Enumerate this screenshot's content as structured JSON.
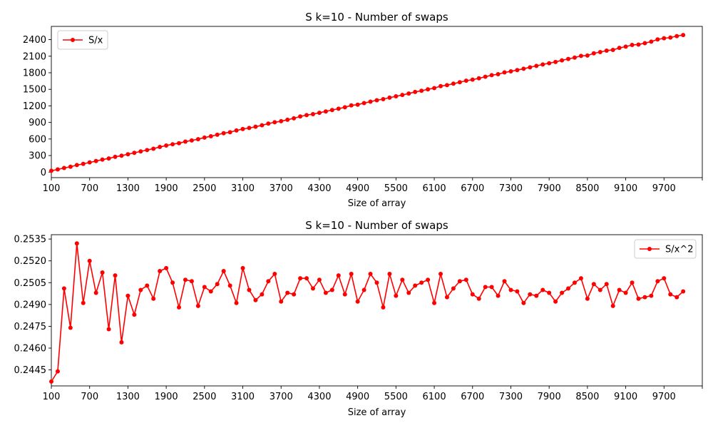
{
  "chart_data": [
    {
      "type": "line",
      "title": "S k=10 - Number of swaps",
      "xlabel": "Size of array",
      "ylabel": "",
      "xlim": [
        100,
        10300
      ],
      "ylim": [
        -100,
        2640
      ],
      "xticks": [
        100,
        700,
        1300,
        1900,
        2500,
        3100,
        3700,
        4300,
        4900,
        5500,
        6100,
        6700,
        7300,
        7900,
        8500,
        9100,
        9700,
        10300
      ],
      "xtick_labels": [
        "100",
        "700",
        "1300",
        "1900",
        "2500",
        "3100",
        "3700",
        "4300",
        "4900",
        "5500",
        "6100",
        "6700",
        "7300",
        "7900",
        "8500",
        "9100",
        "9700",
        ""
      ],
      "yticks": [
        0,
        300,
        600,
        900,
        1200,
        1500,
        1800,
        2100,
        2400
      ],
      "yticks_labels": [
        "0",
        "300",
        "600",
        "900",
        "1200",
        "1500",
        "1800",
        "2100",
        "2400"
      ],
      "legend_position": "top-left",
      "color": "#ff0000",
      "series": [
        {
          "name": "S/x",
          "x": [
            100,
            200,
            300,
            400,
            500,
            600,
            700,
            800,
            900,
            1000,
            1100,
            1200,
            1300,
            1400,
            1500,
            1600,
            1700,
            1800,
            1900,
            2000,
            2100,
            2200,
            2300,
            2400,
            2500,
            2600,
            2700,
            2800,
            2900,
            3000,
            3100,
            3200,
            3300,
            3400,
            3500,
            3600,
            3700,
            3800,
            3900,
            4000,
            4100,
            4200,
            4300,
            4400,
            4500,
            4600,
            4700,
            4800,
            4900,
            5000,
            5100,
            5200,
            5300,
            5400,
            5500,
            5600,
            5700,
            5800,
            5900,
            6000,
            6100,
            6200,
            6300,
            6400,
            6500,
            6600,
            6700,
            6800,
            6900,
            7000,
            7100,
            7200,
            7300,
            7400,
            7500,
            7600,
            7700,
            7800,
            7900,
            8000,
            8100,
            8200,
            8300,
            8400,
            8500,
            8600,
            8700,
            8800,
            8900,
            9000,
            9100,
            9200,
            9300,
            9400,
            9500,
            9600,
            9700,
            9800,
            9900,
            10000
          ],
          "values": [
            24,
            49,
            75,
            97,
            127,
            149,
            176,
            200,
            227,
            247,
            277,
            297,
            324,
            349,
            375,
            400,
            424,
            455,
            481,
            505,
            524,
            552,
            574,
            597,
            626,
            649,
            677,
            705,
            723,
            755,
            780,
            800,
            822,
            849,
            879,
            903,
            922,
            949,
            974,
            1008,
            1033,
            1050,
            1075,
            1099,
            1125,
            1149,
            1174,
            1208,
            1222,
            1250,
            1276,
            1302,
            1322,
            1349,
            1373,
            1398,
            1424,
            1452,
            1474,
            1500,
            1522,
            1558,
            1575,
            1602,
            1629,
            1656,
            1675,
            1700,
            1728,
            1756,
            1774,
            1806,
            1825,
            1849,
            1872,
            1899,
            1924,
            1950,
            1973,
            1996,
            2025,
            2050,
            2074,
            2106,
            2112,
            2152,
            2175,
            2201,
            2214,
            2250,
            2273,
            2304,
            2311,
            2337,
            2364,
            2404,
            2425,
            2438,
            2464,
            2484
          ]
        }
      ]
    },
    {
      "type": "line",
      "title": "S k=10 - Number of swaps",
      "xlabel": "Size of array",
      "ylabel": "",
      "xlim": [
        100,
        10300
      ],
      "ylim": [
        0.2434,
        0.2538
      ],
      "xticks": [
        100,
        700,
        1300,
        1900,
        2500,
        3100,
        3700,
        4300,
        4900,
        5500,
        6100,
        6700,
        7300,
        7900,
        8500,
        9100,
        9700,
        10300
      ],
      "xtick_labels": [
        "100",
        "700",
        "1300",
        "1900",
        "2500",
        "3100",
        "3700",
        "4300",
        "4900",
        "5500",
        "6100",
        "6700",
        "7300",
        "7900",
        "8500",
        "9100",
        "9700",
        ""
      ],
      "yticks": [
        0.2445,
        0.246,
        0.2475,
        0.249,
        0.2505,
        0.252,
        0.2535
      ],
      "yticks_labels": [
        "0.2445",
        "0.2460",
        "0.2475",
        "0.2490",
        "0.2505",
        "0.2520",
        "0.2535"
      ],
      "legend_position": "top-right",
      "color": "#ff0000",
      "series": [
        {
          "name": "S/x^2",
          "x": [
            100,
            200,
            300,
            400,
            500,
            600,
            700,
            800,
            900,
            1000,
            1100,
            1200,
            1300,
            1400,
            1500,
            1600,
            1700,
            1800,
            1900,
            2000,
            2100,
            2200,
            2300,
            2400,
            2500,
            2600,
            2700,
            2800,
            2900,
            3000,
            3100,
            3200,
            3300,
            3400,
            3500,
            3600,
            3700,
            3800,
            3900,
            4000,
            4100,
            4200,
            4300,
            4400,
            4500,
            4600,
            4700,
            4800,
            4900,
            5000,
            5100,
            5200,
            5300,
            5400,
            5500,
            5600,
            5700,
            5800,
            5900,
            6000,
            6100,
            6200,
            6300,
            6400,
            6500,
            6600,
            6700,
            6800,
            6900,
            7000,
            7100,
            7200,
            7300,
            7400,
            7500,
            7600,
            7700,
            7800,
            7900,
            8000,
            8100,
            8200,
            8300,
            8400,
            8500,
            8600,
            8700,
            8800,
            8900,
            9000,
            9100,
            9200,
            9300,
            9400,
            9500,
            9600,
            9700,
            9800,
            9900,
            10000
          ],
          "values": [
            0.2437,
            0.2444,
            0.2501,
            0.2474,
            0.2532,
            0.2491,
            0.252,
            0.2498,
            0.2512,
            0.2473,
            0.251,
            0.2464,
            0.2496,
            0.2483,
            0.25,
            0.2503,
            0.2494,
            0.2513,
            0.2515,
            0.2505,
            0.2488,
            0.2507,
            0.2506,
            0.2489,
            0.2502,
            0.2499,
            0.2504,
            0.2513,
            0.2503,
            0.2491,
            0.2515,
            0.25,
            0.2493,
            0.2497,
            0.2506,
            0.2511,
            0.2492,
            0.2498,
            0.2497,
            0.2508,
            0.2508,
            0.2501,
            0.2507,
            0.2498,
            0.25,
            0.251,
            0.2497,
            0.2511,
            0.2492,
            0.25,
            0.2511,
            0.2505,
            0.2488,
            0.2511,
            0.2496,
            0.2507,
            0.2498,
            0.2503,
            0.2505,
            0.2507,
            0.2491,
            0.2511,
            0.2495,
            0.2501,
            0.2506,
            0.2507,
            0.2497,
            0.2494,
            0.2502,
            0.2502,
            0.2496,
            0.2506,
            0.25,
            0.2499,
            0.2491,
            0.2497,
            0.2496,
            0.25,
            0.2498,
            0.2492,
            0.2498,
            0.2501,
            0.2505,
            0.2508,
            0.2494,
            0.2504,
            0.25,
            0.2504,
            0.2489,
            0.25,
            0.2498,
            0.2505,
            0.2494,
            0.2495,
            0.2496,
            0.2506,
            0.2508,
            0.2497,
            0.2495,
            0.2499
          ]
        }
      ]
    }
  ]
}
